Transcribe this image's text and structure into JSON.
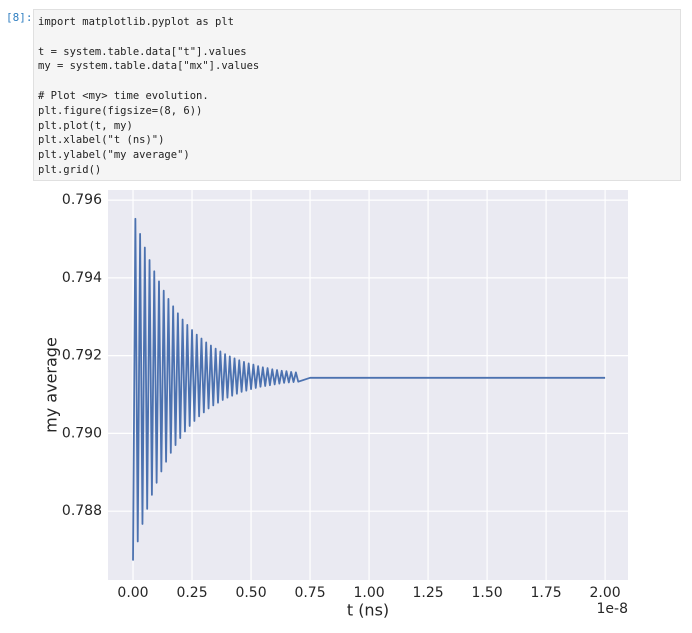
{
  "cell": {
    "prompt": "[8]:",
    "code": [
      [
        "import matplotlib.pyplot as plt"
      ],
      [
        "t = system.table.data[\"t\"].values",
        "my = system.table.data[\"mx\"].values"
      ],
      [
        "# Plot <my> time evolution.",
        "plt.figure(figsize=(8, 6))",
        "plt.plot(t, my)",
        "plt.xlabel(\"t (ns)\")",
        "plt.ylabel(\"my average\")",
        "plt.grid()"
      ]
    ]
  },
  "chart_data": {
    "type": "line",
    "x_label": "t (ns)",
    "y_label": "my average",
    "x_offset_label": "1e-8",
    "color": "#4c72b0",
    "grid": true,
    "xlim": [
      -0.106,
      2.097
    ],
    "ylim": [
      0.78623,
      0.79626
    ],
    "xticks": [
      {
        "value": 0,
        "label": "0.00"
      },
      {
        "value": 0.25,
        "label": "0.25"
      },
      {
        "value": 0.5,
        "label": "0.50"
      },
      {
        "value": 0.75,
        "label": "0.75"
      },
      {
        "value": 1,
        "label": "1.00"
      },
      {
        "value": 1.25,
        "label": "1.25"
      },
      {
        "value": 1.5,
        "label": "1.50"
      },
      {
        "value": 1.75,
        "label": "1.75"
      },
      {
        "value": 2,
        "label": "2.00"
      }
    ],
    "yticks": [
      0.788,
      {
        "value": 0.79,
        "label": "0.790"
      },
      0.792,
      0.794,
      0.796
    ],
    "x": [
      0,
      0.01,
      0.02,
      0.03,
      0.04,
      0.05,
      0.06,
      0.07,
      0.08,
      0.09,
      0.1,
      0.11,
      0.12,
      0.13,
      0.14,
      0.15,
      0.16,
      0.17,
      0.18,
      0.19,
      0.2,
      0.21,
      0.22,
      0.23,
      0.24,
      0.25,
      0.26,
      0.27,
      0.28,
      0.29,
      0.3,
      0.31,
      0.32,
      0.33,
      0.34,
      0.35,
      0.36,
      0.37,
      0.38,
      0.39,
      0.4,
      0.41,
      0.42,
      0.43,
      0.44,
      0.45,
      0.46,
      0.47,
      0.48,
      0.49,
      0.5,
      0.51,
      0.52,
      0.53,
      0.54,
      0.55,
      0.56,
      0.57,
      0.58,
      0.59,
      0.6,
      0.61,
      0.62,
      0.63,
      0.64,
      0.65,
      0.66,
      0.67,
      0.68,
      0.69,
      0.7,
      0.75,
      2.0
    ],
    "values": [
      0.78673,
      0.79552,
      0.78722,
      0.79513,
      0.78767,
      0.79478,
      0.78806,
      0.79446,
      0.78842,
      0.79417,
      0.78873,
      0.79391,
      0.78902,
      0.79367,
      0.78927,
      0.79346,
      0.7895,
      0.79327,
      0.7897,
      0.79309,
      0.78988,
      0.79293,
      0.79005,
      0.79279,
      0.79019,
      0.79266,
      0.79032,
      0.79254,
      0.79044,
      0.79244,
      0.79054,
      0.79234,
      0.79064,
      0.79226,
      0.79072,
      0.79218,
      0.79079,
      0.79211,
      0.79086,
      0.79204,
      0.79092,
      0.79198,
      0.79097,
      0.79193,
      0.79102,
      0.79188,
      0.79107,
      0.79184,
      0.7911,
      0.7918,
      0.79114,
      0.79177,
      0.79117,
      0.79173,
      0.7912,
      0.7917,
      0.79122,
      0.79168,
      0.79124,
      0.79165,
      0.79126,
      0.79163,
      0.79128,
      0.79161,
      0.7913,
      0.7916,
      0.79131,
      0.79158,
      0.79132,
      0.79157,
      0.79133,
      0.79143,
      0.79143
    ]
  }
}
